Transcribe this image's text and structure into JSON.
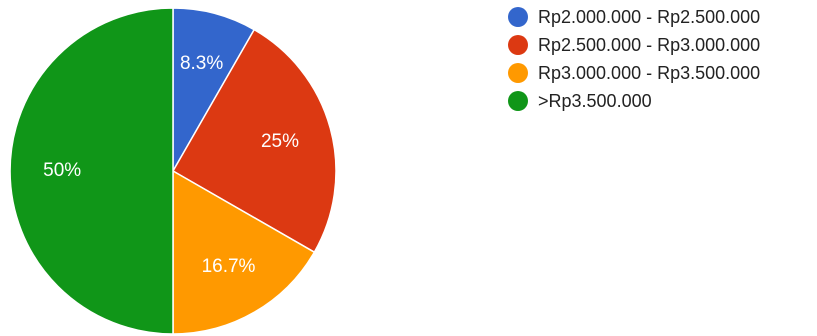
{
  "chart_data": {
    "type": "pie",
    "title": "",
    "slices": [
      {
        "label": "Rp2.000.000 - Rp2.500.000",
        "value": 8.3,
        "display": "8.3%",
        "color": "#3366cc"
      },
      {
        "label": "Rp2.500.000 - Rp3.000.000",
        "value": 25,
        "display": "25%",
        "color": "#dc3912"
      },
      {
        "label": "Rp3.000.000 - Rp3.500.000",
        "value": 16.7,
        "display": "16.7%",
        "color": "#ff9900"
      },
      {
        "label": ">Rp3.500.000",
        "value": 50,
        "display": "50%",
        "color": "#109618"
      }
    ],
    "legend_position": "right"
  }
}
